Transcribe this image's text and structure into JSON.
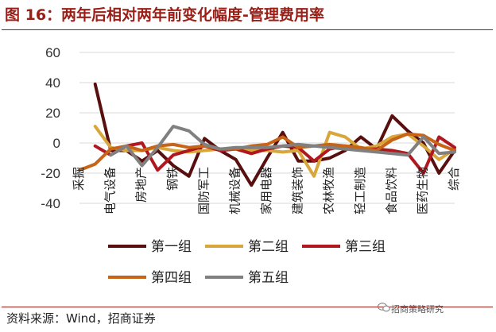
{
  "title": "图 16：两年后相对两年前变化幅度-管理费用率",
  "source": "资料来源：Wind，招商证券",
  "watermark": "招商策略研究",
  "chart_data": {
    "type": "line",
    "y_ticks": [
      "60",
      "40",
      "20",
      "0",
      "-20",
      "-40"
    ],
    "ylim": [
      -40,
      60
    ],
    "grid": "horizontal",
    "legend_position": "bottom",
    "categories": [
      "采掘",
      "",
      "电气设备",
      "",
      "房地产",
      "",
      "钢铁",
      "",
      "国防军工",
      "",
      "机械设备",
      "",
      "家用电器",
      "",
      "建筑装饰",
      "",
      "农林牧渔",
      "",
      "轻工制造",
      "",
      "食品饮料",
      "",
      "医药生物",
      "",
      "综合"
    ],
    "series": [
      {
        "name": "第一组",
        "color": "#5a0f0f",
        "values": [
          null,
          39,
          -5,
          -5,
          -12,
          -5,
          -15,
          -22,
          3,
          -5,
          -11,
          -28,
          -10,
          7,
          -12,
          -12,
          -10,
          -5,
          4,
          -4,
          18,
          8,
          0,
          -20,
          -5
        ]
      },
      {
        "name": "第二组",
        "color": "#d8a63a",
        "values": [
          null,
          11,
          -3,
          -5,
          -5,
          -3,
          -5,
          -6,
          -5,
          -4,
          -4,
          -5,
          -5,
          -6,
          -5,
          -22,
          7,
          4,
          -4,
          -2,
          4,
          6,
          -2,
          -11,
          -4
        ]
      },
      {
        "name": "第三组",
        "color": "#b0171f",
        "values": [
          null,
          -2,
          -8,
          -2,
          0,
          -18,
          -8,
          -5,
          -2,
          -5,
          -4,
          -7,
          -4,
          -2,
          -3,
          -12,
          -4,
          -2,
          -4,
          -4,
          -5,
          -7,
          -20,
          4,
          -3
        ]
      },
      {
        "name": "第四组",
        "color": "#c86417",
        "values": [
          -18,
          -14,
          -4,
          -2,
          -5,
          -2,
          -1,
          -3,
          -2,
          -4,
          -4,
          -2,
          -1,
          4,
          -3,
          -2,
          -1,
          -2,
          -3,
          -5,
          2,
          6,
          5,
          -1,
          -5
        ]
      },
      {
        "name": "第五组",
        "color": "#808080",
        "values": [
          null,
          null,
          -8,
          -2,
          -15,
          -3,
          11,
          8,
          -1,
          -4,
          -3,
          -3,
          -3,
          -2,
          -1,
          -2,
          -3,
          -4,
          -5,
          -6,
          -7,
          -8,
          4,
          -7,
          -6
        ]
      }
    ]
  }
}
